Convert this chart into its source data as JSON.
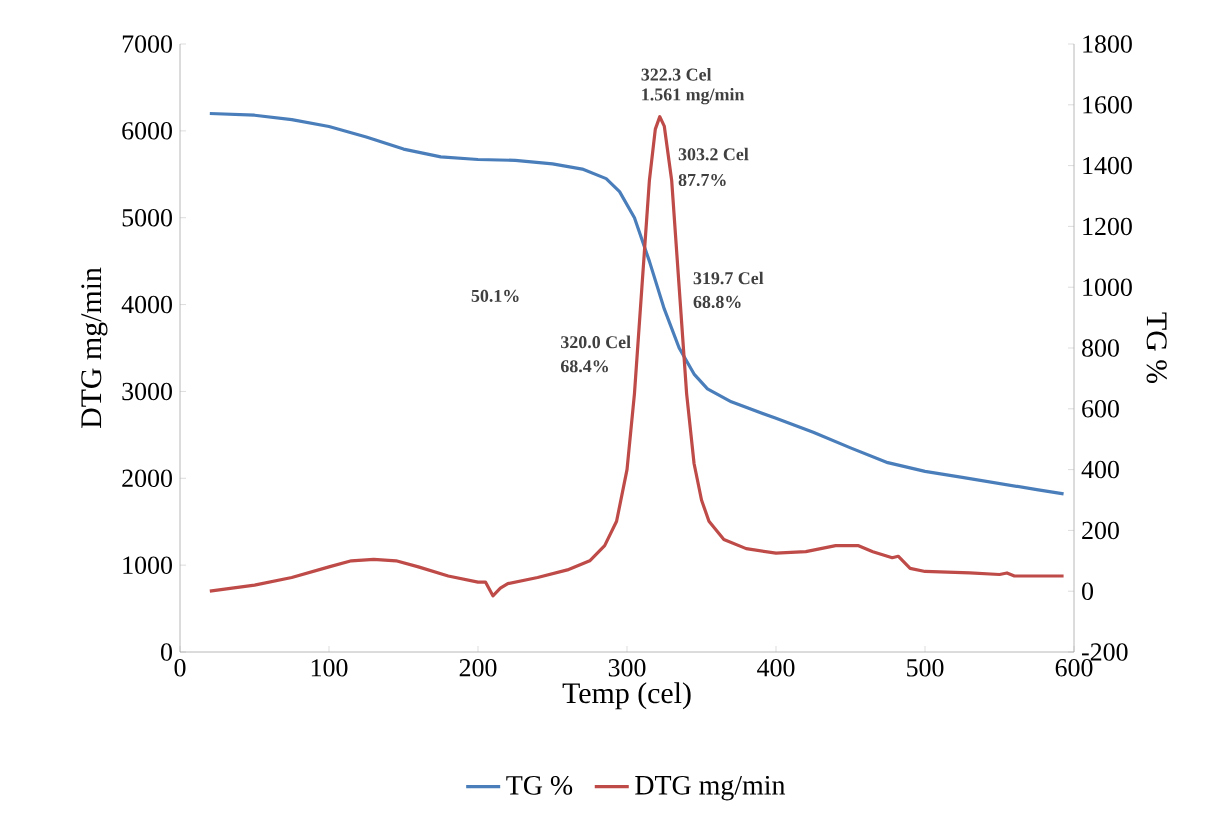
{
  "chart_data": {
    "type": "line",
    "xlabel": "Temp (cel)",
    "ylabel": "DTG mg/min",
    "y2label": "TG %",
    "xlim": [
      0,
      600
    ],
    "xticks": [
      0,
      100,
      200,
      300,
      400,
      500,
      600
    ],
    "ylim": [
      0,
      7000
    ],
    "yticks": [
      0,
      1000,
      2000,
      3000,
      4000,
      5000,
      6000,
      7000
    ],
    "y2lim": [
      -200,
      1800
    ],
    "y2ticks": [
      -200,
      0,
      200,
      400,
      600,
      800,
      1000,
      1200,
      1400,
      1600,
      1800
    ],
    "legend": "bottom",
    "marker": "none",
    "grid": false,
    "annotations": [
      "322.3 Cel",
      "1.561 mg/min",
      "303.2 Cel",
      "87.7%",
      "50.1%",
      "320.0 Cel",
      "68.4%",
      "319.7 Cel",
      "68.8%"
    ],
    "series": [
      {
        "name": "TG %",
        "color": "#4a7ebb",
        "axis": "y",
        "x": [
          20,
          50,
          75,
          100,
          125,
          150,
          175,
          200,
          225,
          250,
          270,
          286,
          295,
          305,
          315,
          325,
          335,
          345,
          354,
          370,
          400,
          425,
          450,
          475,
          500,
          525,
          550,
          575,
          593
        ],
        "values": [
          6200,
          6180,
          6130,
          6050,
          5930,
          5790,
          5700,
          5670,
          5660,
          5620,
          5560,
          5450,
          5300,
          5000,
          4500,
          3950,
          3500,
          3200,
          3030,
          2880,
          2690,
          2530,
          2350,
          2180,
          2080,
          2010,
          1940,
          1870,
          1820
        ]
      },
      {
        "name": "DTG mg/min",
        "color": "#be4b48",
        "axis": "y2",
        "x": [
          20,
          50,
          75,
          100,
          115,
          130,
          145,
          160,
          180,
          200,
          205,
          210,
          215,
          220,
          240,
          260,
          275,
          285,
          293,
          300,
          305,
          310,
          315,
          319,
          322,
          325,
          330,
          335,
          340,
          345,
          350,
          355,
          365,
          380,
          400,
          420,
          440,
          455,
          465,
          478,
          482,
          490,
          500,
          530,
          550,
          555,
          560,
          593
        ],
        "values": [
          0,
          20,
          45,
          80,
          100,
          105,
          100,
          80,
          50,
          30,
          30,
          -15,
          10,
          25,
          45,
          70,
          100,
          150,
          230,
          400,
          650,
          1000,
          1350,
          1520,
          1561,
          1530,
          1350,
          1000,
          650,
          420,
          300,
          230,
          170,
          140,
          125,
          130,
          150,
          150,
          130,
          110,
          115,
          75,
          65,
          60,
          55,
          60,
          50,
          50
        ]
      }
    ]
  }
}
